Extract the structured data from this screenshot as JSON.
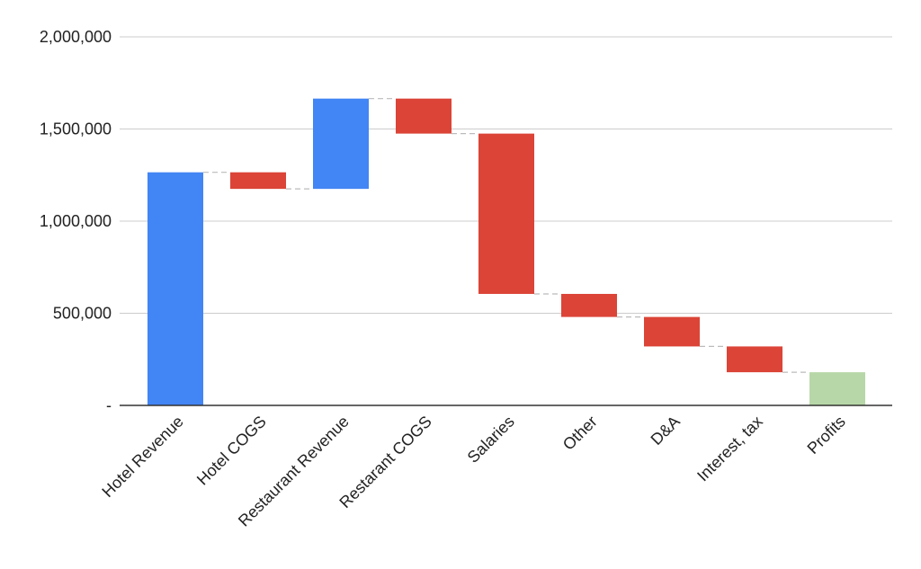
{
  "chart_data": {
    "type": "bar",
    "subtype": "waterfall",
    "title": "",
    "xlabel": "",
    "ylabel": "",
    "ylim": [
      0,
      2000000
    ],
    "y_ticks": [
      0,
      500000,
      1000000,
      1500000,
      2000000
    ],
    "y_tick_labels": [
      "-",
      "500,000",
      "1,000,000",
      "1,500,000",
      "2,000,000"
    ],
    "grid": true,
    "legend": "none",
    "categories": [
      "Hotel Revenue",
      "Hotel COGS",
      "Restaurant Revenue",
      "Restarant COGS",
      "Salaries",
      "Other",
      "D&A",
      "Interest, tax",
      "Profits"
    ],
    "bars": [
      {
        "category": "Hotel Revenue",
        "start": 0,
        "end": 1265000,
        "kind": "increase"
      },
      {
        "category": "Hotel COGS",
        "start": 1265000,
        "end": 1175000,
        "kind": "decrease"
      },
      {
        "category": "Restaurant Revenue",
        "start": 1175000,
        "end": 1665000,
        "kind": "increase"
      },
      {
        "category": "Restarant COGS",
        "start": 1665000,
        "end": 1475000,
        "kind": "decrease"
      },
      {
        "category": "Salaries",
        "start": 1475000,
        "end": 605000,
        "kind": "decrease"
      },
      {
        "category": "Other",
        "start": 605000,
        "end": 480000,
        "kind": "decrease"
      },
      {
        "category": "D&A",
        "start": 480000,
        "end": 320000,
        "kind": "decrease"
      },
      {
        "category": "Interest, tax",
        "start": 320000,
        "end": 180000,
        "kind": "decrease"
      },
      {
        "category": "Profits",
        "start": 0,
        "end": 180000,
        "kind": "total"
      }
    ],
    "colors": {
      "increase": "#4285F4",
      "decrease": "#DB4437",
      "total": "#B7D7A8",
      "grid": "#CCCCCC",
      "axis": "#333333",
      "connector": "#BBBBBB"
    }
  }
}
